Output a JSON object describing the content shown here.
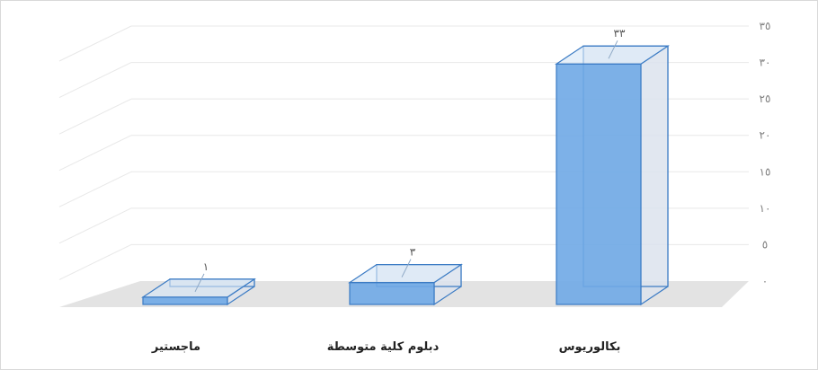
{
  "chart_data": {
    "type": "bar",
    "style": "3d-column",
    "categories": [
      "ماجستير",
      "دبلوم كلية متوسطة",
      "بكالوريوس"
    ],
    "values": [
      1,
      3,
      33
    ],
    "data_labels": [
      "١",
      "٣",
      "٣٣"
    ],
    "ylim": [
      0,
      35
    ],
    "y_ticks": [
      "٠",
      "٥",
      "١٠",
      "١٥",
      "٢٠",
      "٢٥",
      "٣٠",
      "٣٥"
    ],
    "y_axis_side": "right",
    "grid": true,
    "legend": "none",
    "colors": {
      "bar_fill": "#6fa8e6",
      "bar_edge": "#3b7bc4",
      "bar_side": "#dbe3ee",
      "floor": "#e3e3e3",
      "grid": "#e8e8e8"
    }
  }
}
